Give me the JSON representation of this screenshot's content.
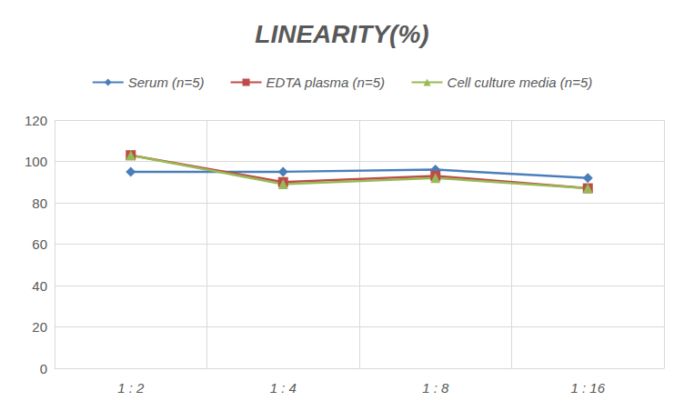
{
  "chart_data": {
    "type": "line",
    "title": "LINEARITY(%)",
    "categories": [
      "1 : 2",
      "1 : 4",
      "1 : 8",
      "1 : 16"
    ],
    "series": [
      {
        "name": "Serum (n=5)",
        "color": "#4a7ebb",
        "marker": "diamond",
        "values": [
          95,
          95,
          96,
          92
        ]
      },
      {
        "name": "EDTA plasma (n=5)",
        "color": "#be4b48",
        "marker": "square",
        "values": [
          103,
          90,
          93,
          87
        ]
      },
      {
        "name": "Cell culture media (n=5)",
        "color": "#98b954",
        "marker": "triangle",
        "values": [
          103,
          89,
          92,
          87
        ]
      }
    ],
    "ylim": [
      0,
      120
    ],
    "yticks": [
      0,
      20,
      40,
      60,
      80,
      100,
      120
    ],
    "grid": true,
    "legend": "top"
  }
}
